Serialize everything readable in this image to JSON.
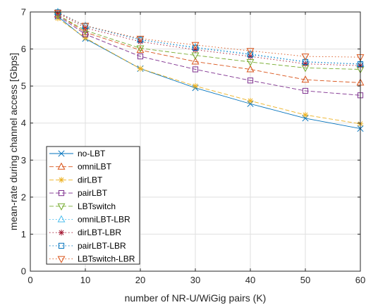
{
  "chart_data": {
    "type": "line",
    "title": "",
    "xlabel": "number of NR-U/WiGig pairs (K)",
    "ylabel": "mean-rate during channel access [Gbps]",
    "xlim": [
      0,
      60
    ],
    "ylim": [
      0,
      7
    ],
    "xticks": [
      0,
      10,
      20,
      30,
      40,
      50,
      60
    ],
    "yticks": [
      0,
      1,
      2,
      3,
      4,
      5,
      6,
      7
    ],
    "grid": true,
    "legend_position": "bottom-left",
    "x": [
      5,
      10,
      20,
      30,
      40,
      50,
      60
    ],
    "series": [
      {
        "name": "no-LBT",
        "values": [
          6.88,
          6.28,
          5.47,
          4.95,
          4.52,
          4.13,
          3.85
        ],
        "color": "#0072BD",
        "dash": "solid",
        "marker": "x"
      },
      {
        "name": "omniLBT",
        "values": [
          6.93,
          6.45,
          5.97,
          5.66,
          5.45,
          5.17,
          5.09
        ],
        "color": "#D95319",
        "dash": "dashed",
        "marker": "triangle-up"
      },
      {
        "name": "dirLBT",
        "values": [
          6.83,
          6.3,
          5.47,
          5.0,
          4.6,
          4.22,
          3.98
        ],
        "color": "#EDB120",
        "dash": "dashed",
        "marker": "asterisk"
      },
      {
        "name": "pairLBT",
        "values": [
          6.9,
          6.4,
          5.8,
          5.45,
          5.15,
          4.87,
          4.75
        ],
        "color": "#7E2F8E",
        "dash": "dashed",
        "marker": "square"
      },
      {
        "name": "LBTswitch",
        "values": [
          6.92,
          6.5,
          6.02,
          5.83,
          5.65,
          5.49,
          5.45
        ],
        "color": "#77AC30",
        "dash": "dashed",
        "marker": "triangle-down"
      },
      {
        "name": "omniLBT-LBR",
        "values": [
          7.0,
          6.63,
          6.25,
          6.05,
          5.87,
          5.66,
          5.6
        ],
        "color": "#4DBEEE",
        "dash": "dotted",
        "marker": "triangle-up"
      },
      {
        "name": "dirLBT-LBR",
        "values": [
          6.97,
          6.57,
          6.2,
          5.98,
          5.8,
          5.6,
          5.55
        ],
        "color": "#A2142F",
        "dash": "dotted",
        "marker": "asterisk"
      },
      {
        "name": "pairLBT-LBR",
        "values": [
          6.99,
          6.62,
          6.25,
          6.03,
          5.85,
          5.65,
          5.59
        ],
        "color": "#0072BD",
        "dash": "dotted",
        "marker": "square"
      },
      {
        "name": "LBTswitch-LBR",
        "values": [
          6.98,
          6.63,
          6.28,
          6.11,
          5.95,
          5.8,
          5.78
        ],
        "color": "#D95319",
        "dash": "dotted",
        "marker": "triangle-down"
      }
    ]
  }
}
